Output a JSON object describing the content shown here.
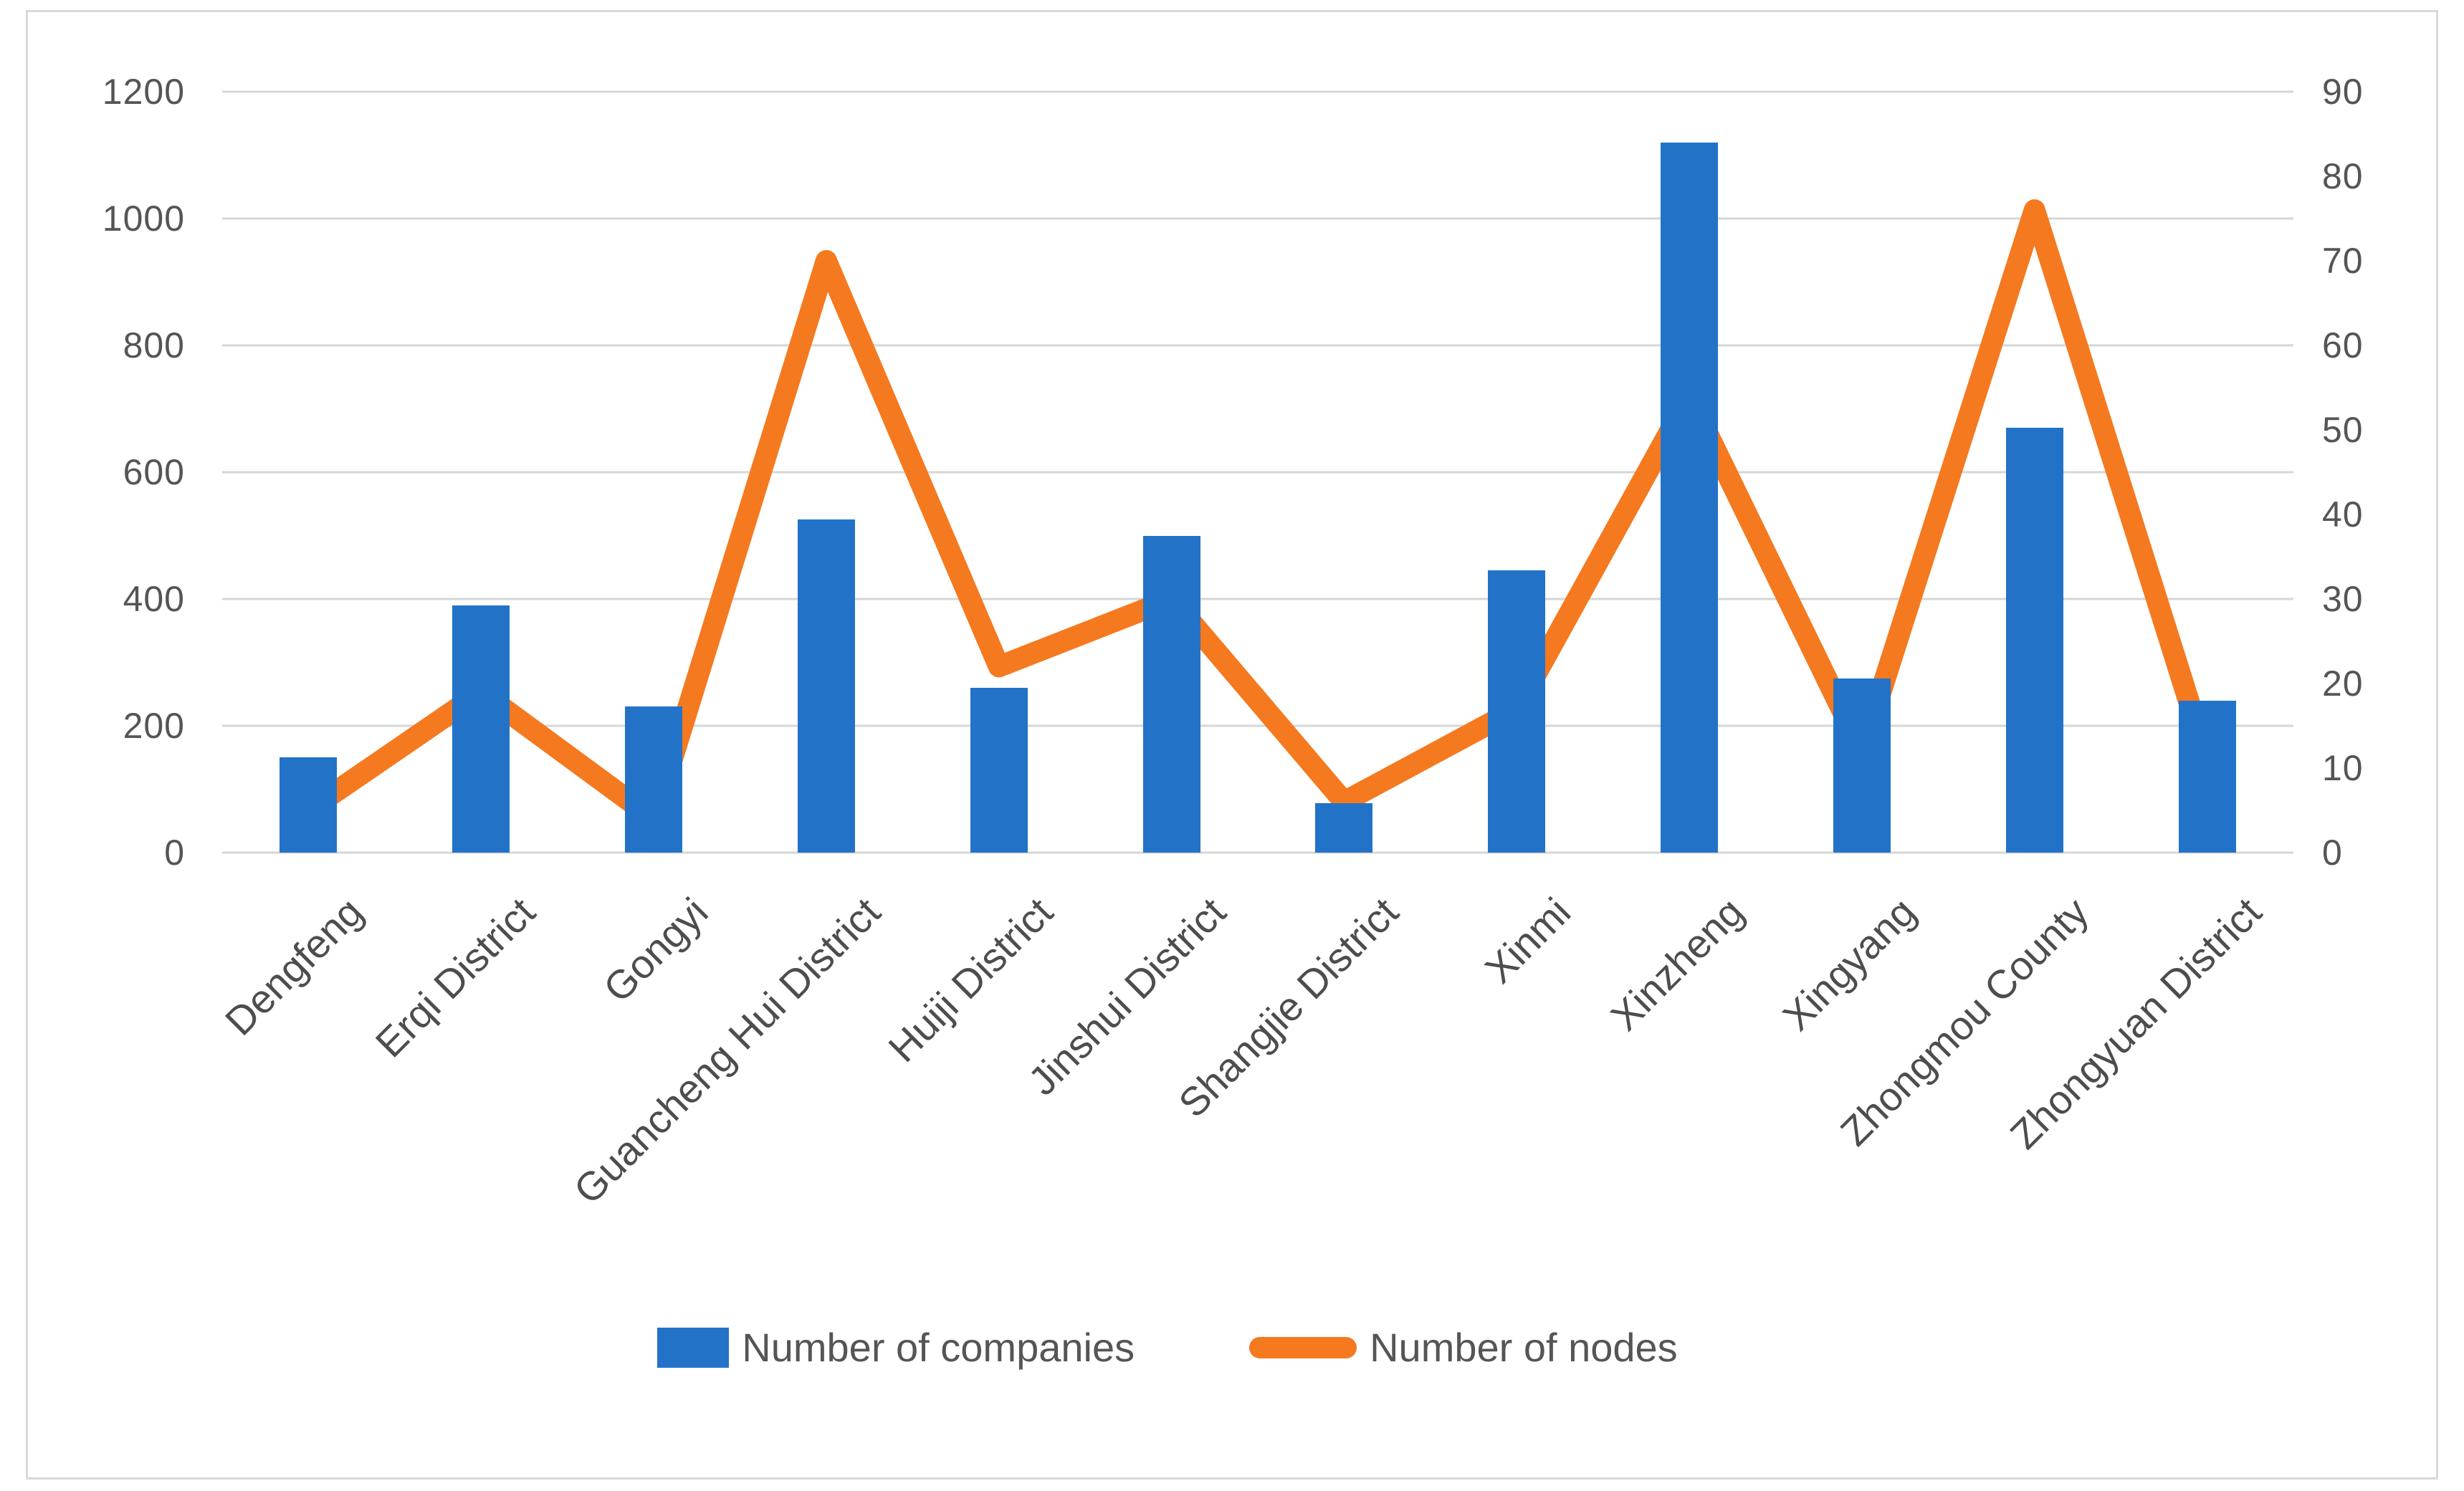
{
  "chart_data": {
    "type": "bar",
    "subtype": "combo-bar-line-dual-axis",
    "title": "",
    "categories": [
      "Dengfeng",
      "Erqi District",
      "Gongyi",
      "Guancheng Hui District",
      "Huiji District",
      "Jinshui District",
      "Shangjie District",
      "Xinmi",
      "Xinzheng",
      "Xingyang",
      "Zhongmou County",
      "Zhongyuan District"
    ],
    "series": [
      {
        "name": "Number of companies",
        "type": "bar",
        "axis": "left",
        "color": "#2273C8",
        "values": [
          150,
          390,
          230,
          525,
          260,
          500,
          78,
          445,
          1120,
          275,
          670,
          240
        ]
      },
      {
        "name": "Number of nodes",
        "type": "line",
        "axis": "right",
        "color": "#F5791F",
        "values": [
          5,
          19,
          4,
          70,
          22,
          30,
          6,
          17,
          54,
          12,
          76,
          11
        ]
      }
    ],
    "left_axis": {
      "min": 0,
      "max": 1200,
      "step": 200,
      "tick_labels": [
        "0",
        "200",
        "400",
        "600",
        "800",
        "1000",
        "1200"
      ]
    },
    "right_axis": {
      "min": 0,
      "max": 90,
      "step": 10,
      "tick_labels": [
        "0",
        "10",
        "20",
        "30",
        "40",
        "50",
        "60",
        "70",
        "80",
        "90"
      ]
    },
    "grid": true,
    "gridline_color": "#D6D6D6",
    "legend_position": "bottom",
    "xlabel": "",
    "ylabel": ""
  },
  "legend": {
    "companies_label": "Number of companies",
    "nodes_label": "Number of nodes"
  },
  "colors": {
    "bar_blue": "#2273C8",
    "line_orange": "#F5791F",
    "grid_gray": "#D6D6D6",
    "frame_gray": "#D9D9D9",
    "text_gray": "#555555"
  }
}
